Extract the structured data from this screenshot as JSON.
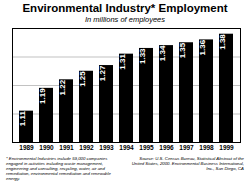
{
  "chart_data": {
    "type": "bar",
    "title": "Environmental Industry* Employment",
    "subtitle": "In millions of employees",
    "categories": [
      "1989",
      "1990",
      "1991",
      "1992",
      "1993",
      "1994",
      "1995",
      "1996",
      "1997",
      "1998",
      "1999"
    ],
    "values": [
      1.11,
      1.19,
      1.22,
      1.25,
      1.27,
      1.31,
      1.33,
      1.34,
      1.35,
      1.36,
      1.38
    ],
    "color": "#000000",
    "ylim": [
      1,
      1.4
    ],
    "yticks": [
      1,
      1.1,
      1.2,
      1.3,
      1.4
    ],
    "grid": true,
    "data_labels": true,
    "tick_labels": "x",
    "annotations": [
      "* Environmental Industries include 59,000 companies engaged in activities including waste management, engineering and consulting, recycling, water, air and remediation, environmental remediation and renewable energy.",
      "Source: U.S. Census Bureau, Statistical Abstract of the United States, 2000. Environmental Business International, Inc., San Diego, CA"
    ]
  }
}
